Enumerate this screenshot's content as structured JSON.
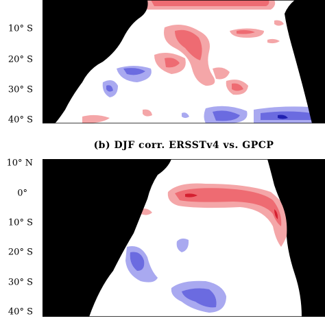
{
  "panels": [
    {
      "lat_labels": [
        "10° S",
        "20° S",
        "30° S",
        "40° S"
      ]
    },
    {
      "title": "(b) DJF corr. ERSSTv4 vs. GPCP",
      "lat_labels": [
        "10° N",
        "0°",
        "10° S",
        "20° S",
        "30° S",
        "40° S"
      ]
    }
  ]
}
